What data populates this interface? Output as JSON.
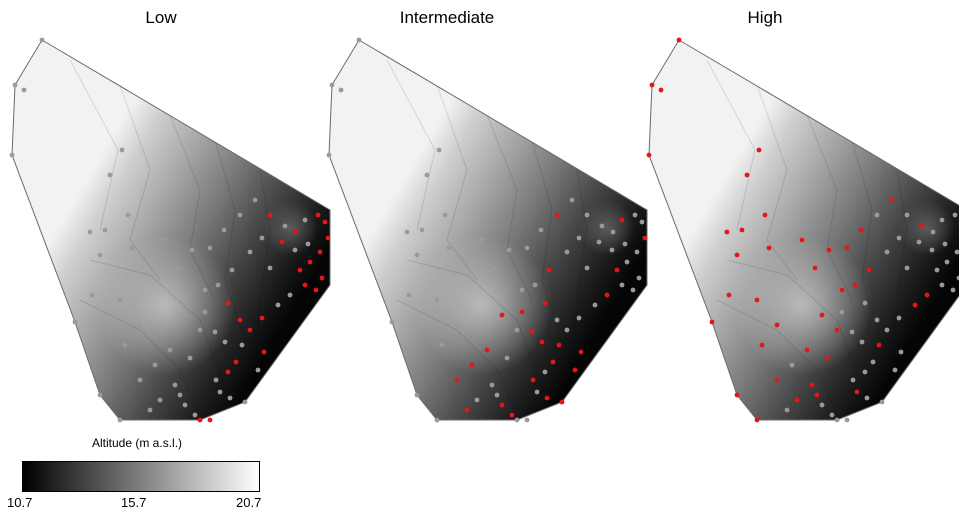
{
  "panels": [
    {
      "id": "low",
      "title": "Low"
    },
    {
      "id": "intermediate",
      "title": "Intermediate"
    },
    {
      "id": "high",
      "title": "High"
    }
  ],
  "legend": {
    "title": "Altitude (m a.s.l.)",
    "min_label": "10.7",
    "mid_label": "15.7",
    "max_label": "20.7",
    "color_low": "#000000",
    "color_high": "#ffffff"
  },
  "colors": {
    "highlight_point": "#e8141c",
    "regular_point": "#9a9a9a"
  }
}
